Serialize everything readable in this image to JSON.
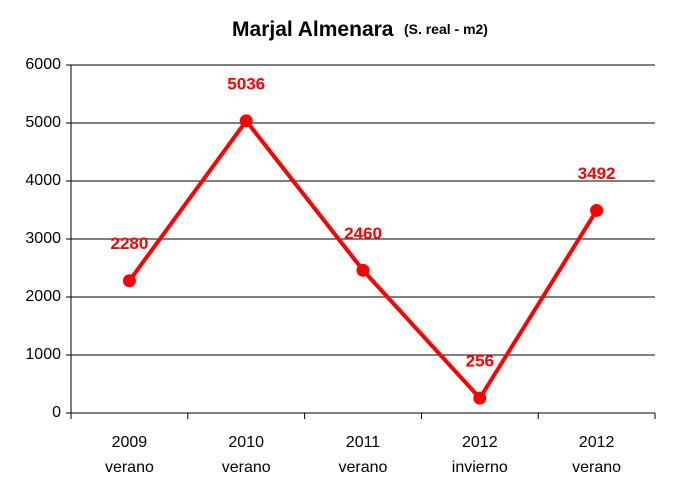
{
  "chart_data": {
    "type": "line",
    "title": "Marjal Almenara",
    "subtitle": "(S. real - m2)",
    "categories": [
      [
        "2009",
        "verano"
      ],
      [
        "2010",
        "verano"
      ],
      [
        "2011",
        "verano"
      ],
      [
        "2012",
        "invierno"
      ],
      [
        "2012",
        "verano"
      ]
    ],
    "series": [
      {
        "name": "Marjal Almenara",
        "color": "#ff0000",
        "values": [
          2280,
          5036,
          2460,
          256,
          3492
        ]
      }
    ],
    "ylim": [
      0,
      6000
    ],
    "yticks": [
      0,
      1000,
      2000,
      3000,
      4000,
      5000,
      6000
    ],
    "grid": true,
    "legend": false
  }
}
